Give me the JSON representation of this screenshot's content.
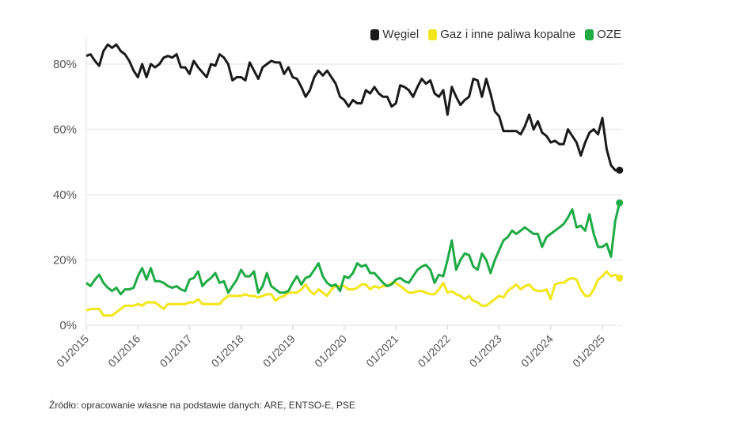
{
  "chart_data": {
    "type": "line",
    "title": "",
    "xlabel": "",
    "ylabel": "",
    "x_start": "01/2015",
    "x_end": "05/2025",
    "x_frequency": "monthly",
    "x_ticks": [
      "01/2015",
      "01/2016",
      "01/2017",
      "01/2018",
      "01/2019",
      "01/2020",
      "01/2021",
      "01/2022",
      "01/2023",
      "01/2024",
      "01/2025"
    ],
    "y_ticks": [
      0,
      20,
      40,
      60,
      80
    ],
    "y_tick_labels": [
      "0%",
      "20%",
      "40%",
      "60%",
      "80%"
    ],
    "ylim": [
      0,
      90
    ],
    "grid": "horizontal",
    "legend_position": "top-right",
    "series": [
      {
        "name": "Węgiel",
        "color": "#1a1a1a",
        "values": [
          82.5,
          83,
          81,
          79.5,
          84,
          86,
          85,
          86,
          84,
          83,
          81,
          78,
          76,
          80,
          76,
          80,
          79,
          80,
          82,
          82.5,
          82,
          83,
          79,
          79,
          77,
          81,
          79,
          77.5,
          76,
          80,
          79.5,
          83,
          82,
          80,
          75,
          76,
          76,
          75,
          80.5,
          78,
          75.5,
          79,
          80,
          81,
          80.5,
          80.5,
          77,
          79,
          76,
          75.5,
          73,
          70,
          72,
          76,
          78,
          76.5,
          78,
          76,
          74,
          70,
          69,
          67,
          69,
          68,
          68,
          72,
          71,
          73,
          71,
          70,
          70,
          67,
          68,
          73.5,
          73,
          72,
          70,
          73,
          75.5,
          74,
          75,
          71,
          70,
          72,
          64.5,
          73,
          70,
          67.5,
          69,
          70,
          75.5,
          75,
          70,
          75.5,
          71,
          65.5,
          64,
          59.5,
          59.5,
          59.5,
          59.5,
          58.5,
          61,
          64.5,
          60,
          62.5,
          59,
          58,
          56,
          56.5,
          55.5,
          55.5,
          60,
          58,
          56,
          52,
          56,
          59,
          60,
          58.5,
          63.5,
          54,
          49,
          47.5,
          47.5
        ]
      },
      {
        "name": "Gaz i inne paliwa kopalne",
        "color": "#f2e619",
        "values": [
          4.5,
          5,
          5,
          5,
          3,
          3,
          3,
          4,
          5,
          6,
          6,
          6,
          6.5,
          6,
          7,
          7,
          7,
          6,
          5,
          6.5,
          6.5,
          6.5,
          6.5,
          6.5,
          7,
          7,
          8,
          6.5,
          6.5,
          6.5,
          6.5,
          6.5,
          8,
          9,
          9,
          9,
          9,
          9.5,
          9,
          9,
          8.5,
          9,
          9.5,
          9.5,
          7.5,
          8.5,
          9,
          10,
          10,
          10,
          11,
          12.5,
          10.5,
          9.5,
          11,
          10,
          9,
          11,
          12,
          12,
          12,
          11,
          11,
          11.5,
          12.5,
          12.5,
          11,
          12,
          11.5,
          12,
          12,
          13,
          13,
          12,
          11,
          10,
          10,
          10.5,
          10.5,
          10,
          9.5,
          9.5,
          11,
          13,
          10,
          10.5,
          9.5,
          9,
          8,
          9,
          7.5,
          7,
          6,
          6,
          7,
          8,
          9,
          8.5,
          10.5,
          11.5,
          12.5,
          11,
          12,
          12.5,
          11,
          10.5,
          10.5,
          11,
          8,
          12.5,
          13,
          13,
          14,
          14.5,
          14,
          11,
          9,
          9,
          11,
          14,
          15,
          16.5,
          15,
          15.5,
          14.5
        ]
      },
      {
        "name": "OZE",
        "color": "#1faa45",
        "values": [
          13,
          12,
          14,
          15.5,
          13,
          11.5,
          10.5,
          11.5,
          9.5,
          11,
          11,
          11.5,
          15,
          17.5,
          14,
          17.5,
          13.5,
          13.5,
          13,
          12,
          11.5,
          12,
          11,
          10.5,
          14,
          14.5,
          16.5,
          12,
          13.5,
          14.5,
          16,
          13,
          13.5,
          10,
          12,
          14,
          17,
          15,
          15,
          16.5,
          10,
          12,
          16,
          12,
          11,
          10,
          10,
          10.5,
          13,
          15,
          12.5,
          14.5,
          15,
          17,
          19,
          15,
          13,
          12,
          12.5,
          10.5,
          15,
          14.5,
          16,
          19,
          18,
          18.5,
          16,
          16,
          14.5,
          13,
          12,
          12.5,
          14,
          14.5,
          13.5,
          13,
          15,
          17,
          18,
          18.5,
          17,
          13,
          15.5,
          15,
          20,
          26,
          17,
          20,
          22,
          21.5,
          18,
          17,
          22,
          20,
          16,
          20,
          23,
          26,
          27,
          29,
          28,
          29,
          30,
          29,
          28,
          28,
          24,
          27,
          28,
          29,
          30,
          31,
          33,
          35.5,
          30,
          30.5,
          29,
          34,
          28,
          24,
          24,
          25,
          21,
          32,
          37.5
        ]
      }
    ]
  },
  "source": "Źródło: opracowanie własne na podstawie danych: ARE, ENTSO-E, PSE"
}
